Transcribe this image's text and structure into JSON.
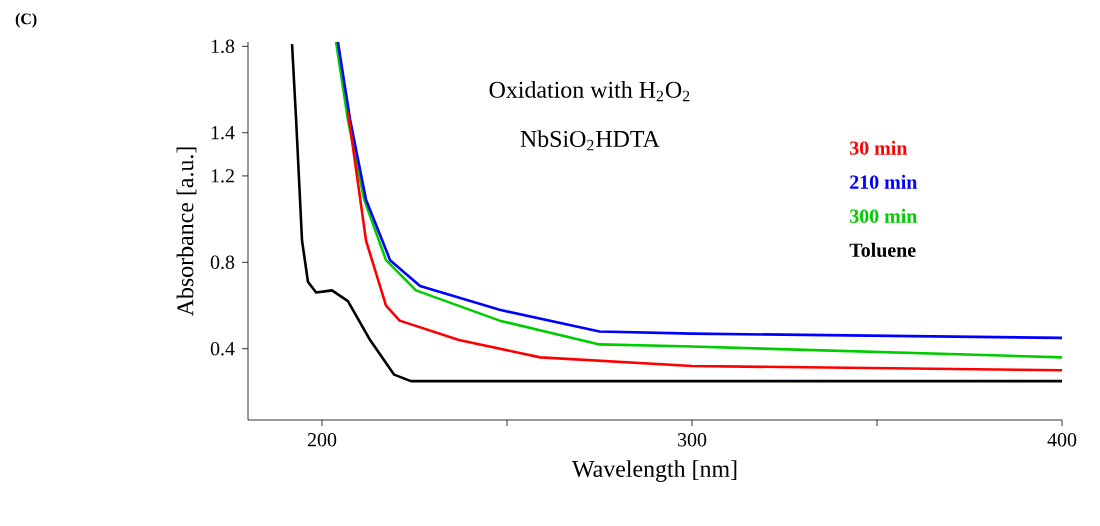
{
  "chart_data": {
    "type": "line",
    "title": "Oxidation with H$_{2}$O$_{2}$",
    "subtitle": "NbSiO$_{2}$HDTA",
    "xlabel": "Wavelength [nm]",
    "ylabel": "Absorbance [a.u.]",
    "annotations": [
      "(C)"
    ],
    "xlim": [
      180,
      400
    ],
    "ylim": [
      0.07,
      1.82
    ],
    "xticks": [
      200,
      {
        "value": 250,
        "label": null
      },
      300,
      {
        "value": 350,
        "label": null
      },
      400
    ],
    "yticks": [
      0.4,
      0.8,
      1.2,
      1.4,
      1.8
    ],
    "legend": "right",
    "grid": false,
    "marker": "none",
    "line_style": "solid",
    "series": [
      {
        "name": "30 min",
        "color": "#ff0000",
        "x": [
          207,
          211.9,
          217.3,
          221,
          237,
          259,
          300,
          400
        ],
        "values": [
          1.5,
          0.9,
          0.6,
          0.53,
          0.44,
          0.36,
          0.32,
          0.3
        ]
      },
      {
        "name": "210 min",
        "color": "#0000ff",
        "x": [
          204.3,
          207.6,
          211.9,
          218.4,
          226.5,
          248,
          275,
          300,
          400
        ],
        "values": [
          1.82,
          1.46,
          1.09,
          0.81,
          0.69,
          0.58,
          0.48,
          0.47,
          0.45
        ]
      },
      {
        "name": "300 min",
        "color": "#00cc00",
        "x": [
          203.8,
          207,
          211.4,
          217.3,
          225.4,
          248,
          275,
          300,
          400
        ],
        "values": [
          1.82,
          1.46,
          1.09,
          0.81,
          0.67,
          0.53,
          0.42,
          0.41,
          0.36
        ]
      },
      {
        "name": "Toluene",
        "color": "#000000",
        "x": [
          191.9,
          193,
          194.6,
          196.2,
          198.4,
          202.7,
          207,
          213,
          219.5,
          224,
          300,
          400
        ],
        "values": [
          1.81,
          1.46,
          0.9,
          0.71,
          0.66,
          0.67,
          0.62,
          0.44,
          0.28,
          0.25,
          0.25,
          0.25
        ]
      }
    ]
  }
}
